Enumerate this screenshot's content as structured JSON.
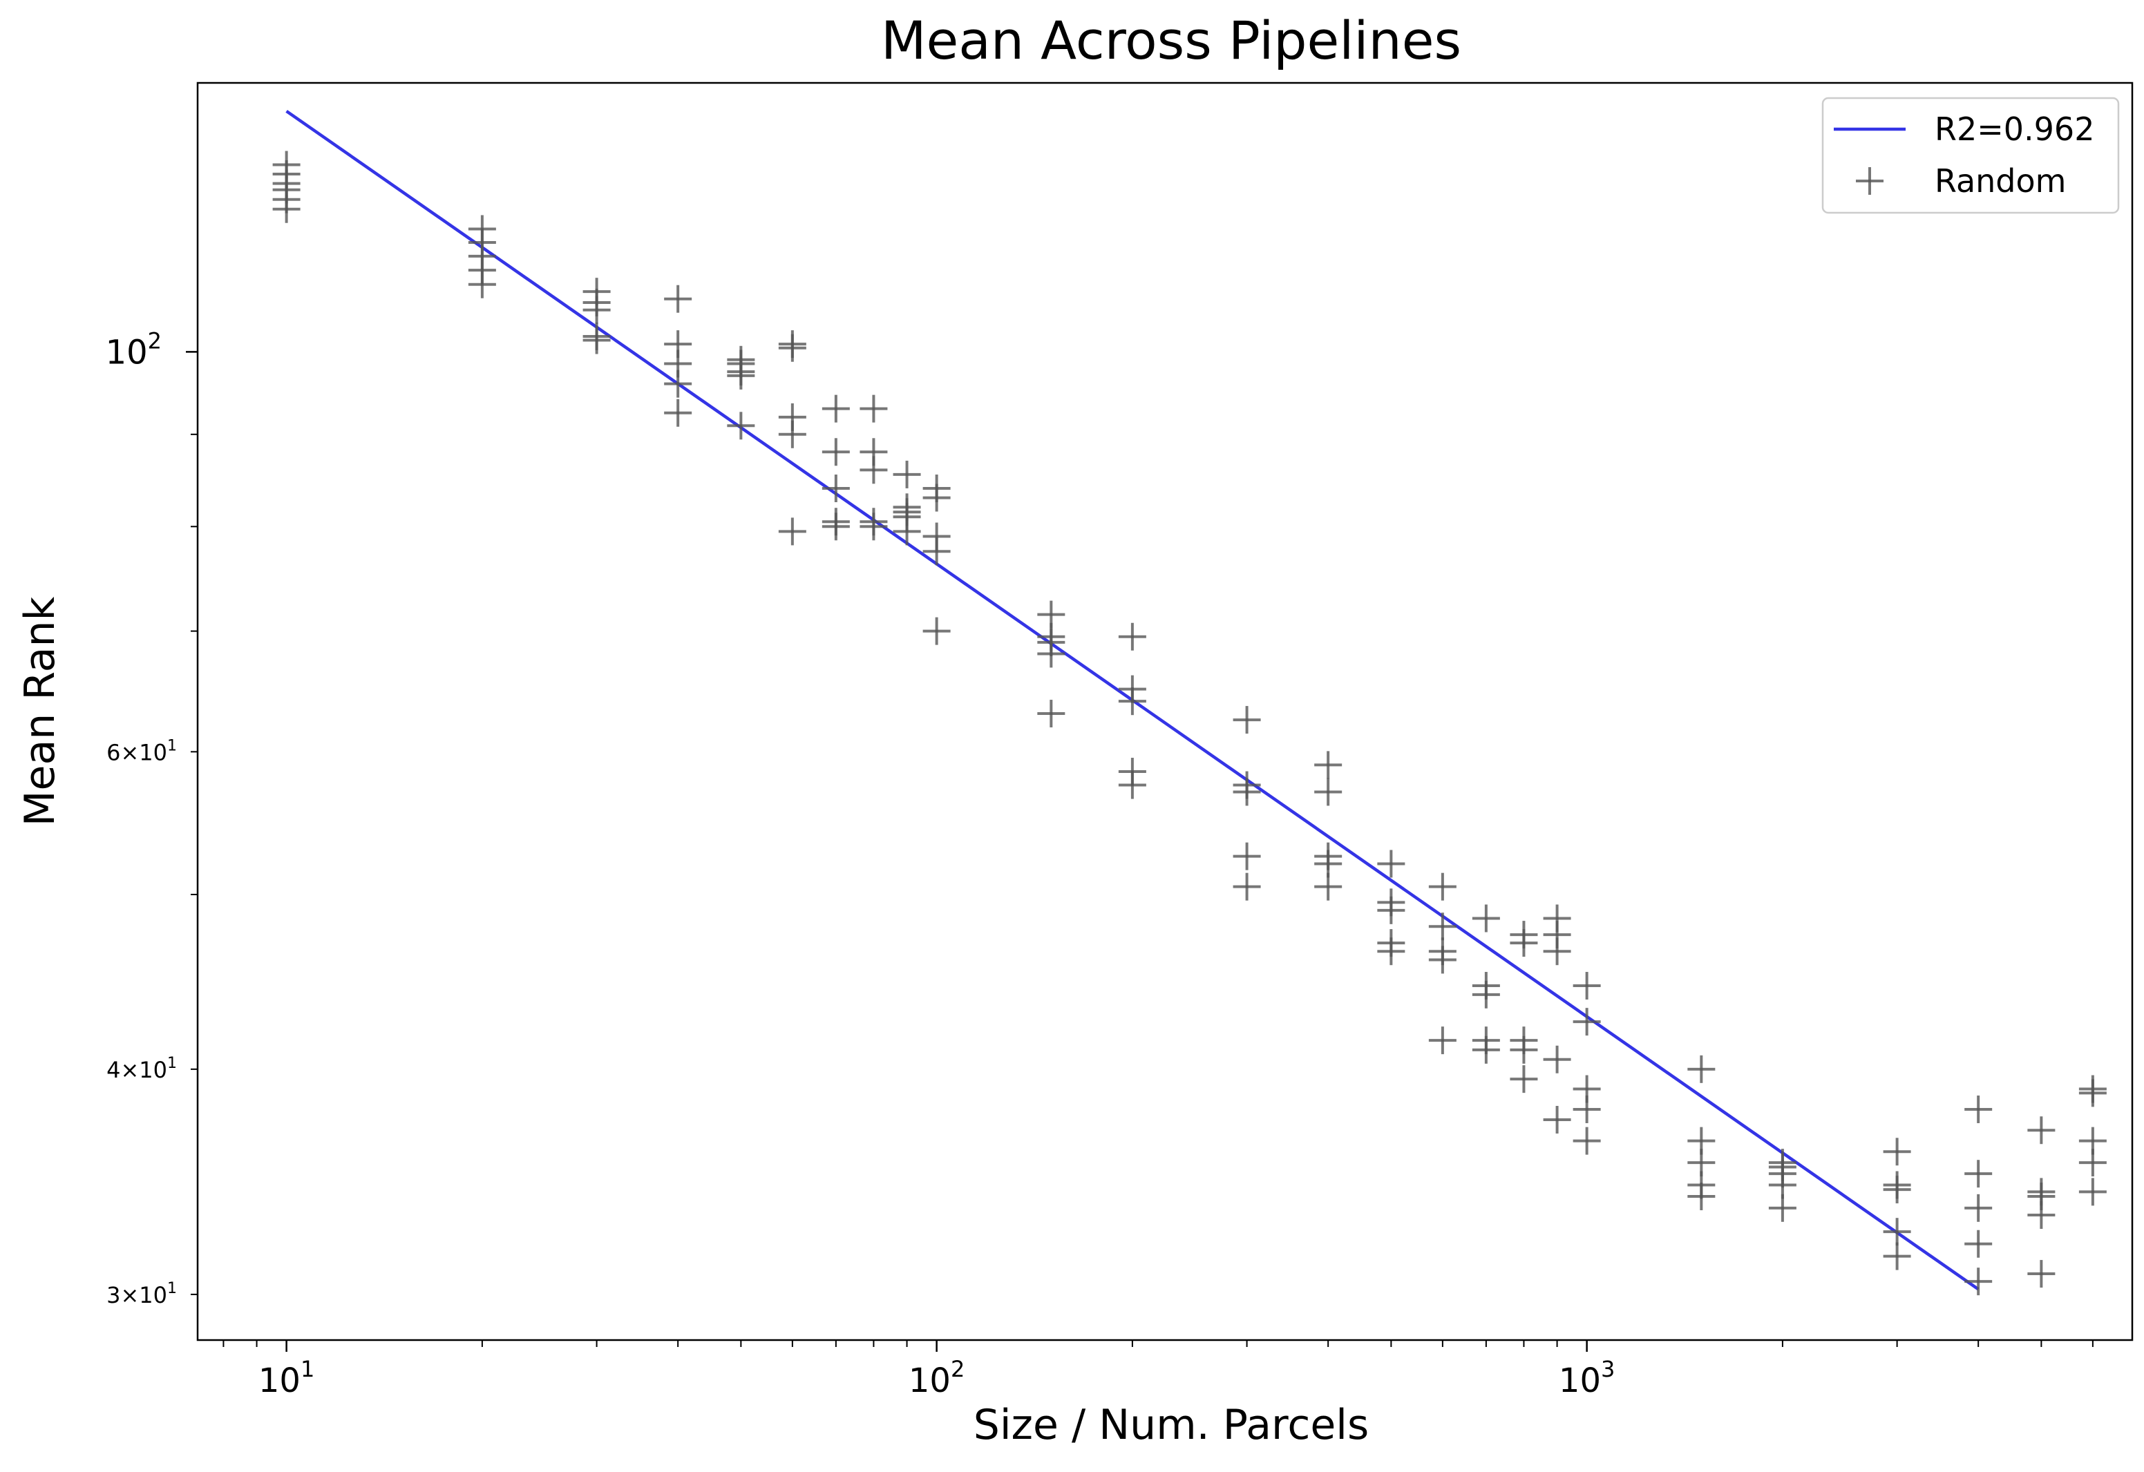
{
  "chart_data": {
    "type": "scatter",
    "title": "Mean Across Pipelines",
    "xlabel": "Size / Num. Parcels",
    "ylabel": "Mean Rank",
    "xscale": "log",
    "yscale": "log",
    "xlim": [
      7.3,
      6900
    ],
    "ylim": [
      28.3,
      141
    ],
    "grid": false,
    "legend_position": "top-right",
    "x_ticks": [
      {
        "base": "10",
        "exp": "1",
        "value": 10
      },
      {
        "base": "10",
        "exp": "2",
        "value": 100
      },
      {
        "base": "10",
        "exp": "3",
        "value": 1000
      }
    ],
    "y_ticks_major": [
      {
        "base": "10",
        "exp": "2",
        "value": 100
      }
    ],
    "y_ticks_minor_labeled": [
      {
        "mantissa": "3",
        "base": "10",
        "exp": "1",
        "value": 30
      },
      {
        "mantissa": "4",
        "base": "10",
        "exp": "1",
        "value": 40
      },
      {
        "mantissa": "6",
        "base": "10",
        "exp": "1",
        "value": 60
      }
    ],
    "fit_line": {
      "label": "R2=0.962",
      "color": "#3434e6",
      "x": [
        10,
        4000
      ],
      "y": [
        136,
        30.2
      ]
    },
    "scatter": {
      "label": "Random",
      "color": "#555555",
      "points": [
        [
          10,
          127
        ],
        [
          10,
          125.5
        ],
        [
          10,
          124
        ],
        [
          10,
          123
        ],
        [
          10,
          121.5
        ],
        [
          10,
          120
        ],
        [
          20,
          117
        ],
        [
          20,
          115
        ],
        [
          20,
          113
        ],
        [
          20,
          111
        ],
        [
          20,
          109
        ],
        [
          30,
          108
        ],
        [
          30,
          106.5
        ],
        [
          30,
          105.5
        ],
        [
          30,
          102
        ],
        [
          30,
          101.5
        ],
        [
          40,
          107
        ],
        [
          40,
          101
        ],
        [
          40,
          98.5
        ],
        [
          40,
          96
        ],
        [
          40,
          92.5
        ],
        [
          50,
          99
        ],
        [
          50,
          98.5
        ],
        [
          50,
          97.5
        ],
        [
          50,
          97
        ],
        [
          50,
          91
        ],
        [
          60,
          101
        ],
        [
          60,
          100.5
        ],
        [
          60,
          92
        ],
        [
          60,
          90
        ],
        [
          60,
          79.5
        ],
        [
          70,
          93
        ],
        [
          70,
          88
        ],
        [
          70,
          84
        ],
        [
          70,
          80.5
        ],
        [
          70,
          80
        ],
        [
          80,
          93
        ],
        [
          80,
          88
        ],
        [
          80,
          86
        ],
        [
          80,
          80.5
        ],
        [
          80,
          80
        ],
        [
          90,
          85.5
        ],
        [
          90,
          82
        ],
        [
          90,
          81.5
        ],
        [
          90,
          81
        ],
        [
          90,
          79.5
        ],
        [
          100,
          84
        ],
        [
          100,
          83
        ],
        [
          100,
          79
        ],
        [
          100,
          77.5
        ],
        [
          100,
          70
        ],
        [
          150,
          71.5
        ],
        [
          150,
          69.5
        ],
        [
          150,
          69
        ],
        [
          150,
          68
        ],
        [
          150,
          63
        ],
        [
          200,
          69.5
        ],
        [
          200,
          65
        ],
        [
          200,
          64
        ],
        [
          200,
          58.5
        ],
        [
          200,
          57.5
        ],
        [
          300,
          62.5
        ],
        [
          300,
          57.5
        ],
        [
          300,
          57
        ],
        [
          300,
          52.5
        ],
        [
          300,
          50.5
        ],
        [
          400,
          59
        ],
        [
          400,
          57
        ],
        [
          400,
          52.5
        ],
        [
          400,
          52
        ],
        [
          400,
          50.5
        ],
        [
          500,
          52
        ],
        [
          500,
          49.5
        ],
        [
          500,
          49
        ],
        [
          500,
          47
        ],
        [
          500,
          46.5
        ],
        [
          600,
          50.5
        ],
        [
          600,
          48
        ],
        [
          600,
          46.5
        ],
        [
          600,
          46
        ],
        [
          600,
          41.5
        ],
        [
          700,
          48.5
        ],
        [
          700,
          44.5
        ],
        [
          700,
          44
        ],
        [
          700,
          41.5
        ],
        [
          700,
          41
        ],
        [
          800,
          47.5
        ],
        [
          800,
          47
        ],
        [
          800,
          41.5
        ],
        [
          800,
          41
        ],
        [
          800,
          39.5
        ],
        [
          900,
          48.5
        ],
        [
          900,
          47.5
        ],
        [
          900,
          46.5
        ],
        [
          900,
          40.5
        ],
        [
          900,
          37.5
        ],
        [
          1000,
          44.5
        ],
        [
          1000,
          42.5
        ],
        [
          1000,
          39
        ],
        [
          1000,
          38
        ],
        [
          1000,
          36.5
        ],
        [
          1500,
          40
        ],
        [
          1500,
          36.5
        ],
        [
          1500,
          35.5
        ],
        [
          1500,
          34.5
        ],
        [
          1500,
          34
        ],
        [
          2000,
          35.5
        ],
        [
          2000,
          35.3
        ],
        [
          2000,
          35
        ],
        [
          2000,
          34.5
        ],
        [
          2000,
          33.5
        ],
        [
          3000,
          36
        ],
        [
          3000,
          34.5
        ],
        [
          3000,
          34.3
        ],
        [
          3000,
          32.5
        ],
        [
          3000,
          31.5
        ],
        [
          4000,
          38
        ],
        [
          4000,
          35
        ],
        [
          4000,
          33.5
        ],
        [
          4000,
          32
        ],
        [
          4000,
          30.5
        ],
        [
          5000,
          37
        ],
        [
          5000,
          34.2
        ],
        [
          5000,
          34
        ],
        [
          5000,
          33.2
        ],
        [
          5000,
          30.8
        ],
        [
          6000,
          39
        ],
        [
          6000,
          38.8
        ],
        [
          6000,
          36.5
        ],
        [
          6000,
          35.5
        ],
        [
          6000,
          34.2
        ]
      ]
    }
  }
}
